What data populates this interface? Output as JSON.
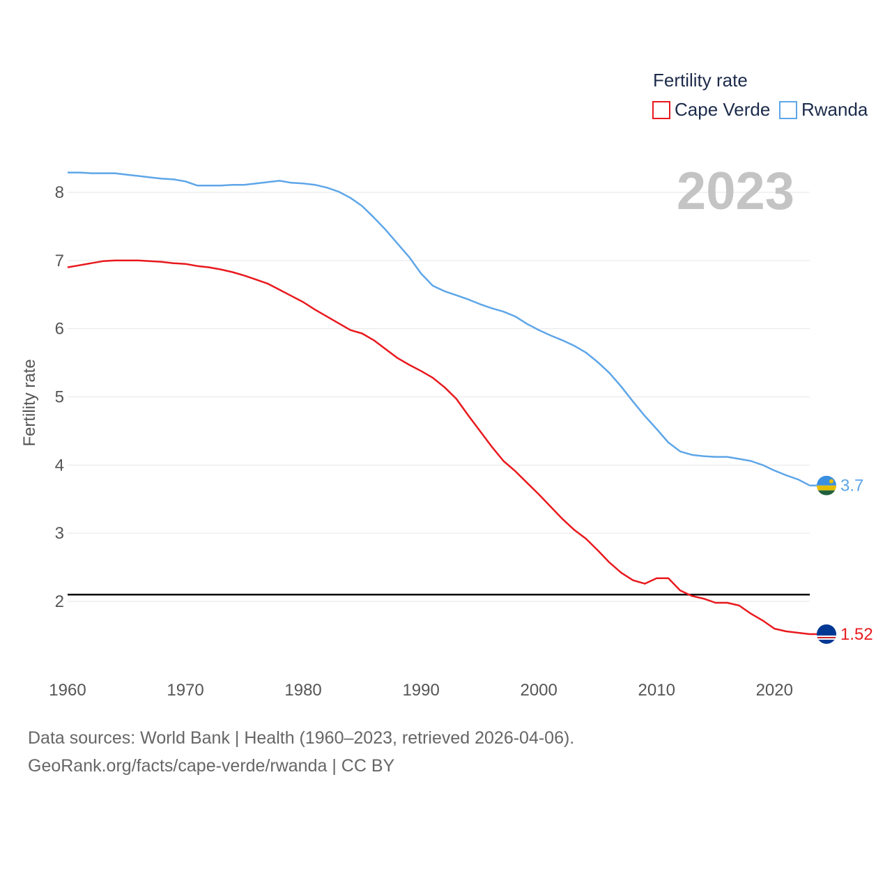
{
  "chart_data": {
    "type": "line",
    "title": "Fertility rate",
    "ylabel": "Fertility rate",
    "xlabel": "",
    "xlim": [
      1960,
      2023
    ],
    "ylim": [
      1.0,
      8.6
    ],
    "x_ticks": [
      1960,
      1970,
      1980,
      1990,
      2000,
      2010,
      2020
    ],
    "y_ticks": [
      2,
      3,
      4,
      5,
      6,
      7,
      8
    ],
    "current_year": "2023",
    "legend_position": "top-right",
    "reference_line": {
      "value": 2.1,
      "color": "#000000"
    },
    "series": [
      {
        "name": "Cape Verde",
        "color": "#e8191e",
        "end_label": "1.52",
        "x": [
          1960,
          1961,
          1962,
          1963,
          1964,
          1965,
          1966,
          1967,
          1968,
          1969,
          1970,
          1971,
          1972,
          1973,
          1974,
          1975,
          1976,
          1977,
          1978,
          1979,
          1980,
          1981,
          1982,
          1983,
          1984,
          1985,
          1986,
          1987,
          1988,
          1989,
          1990,
          1991,
          1992,
          1993,
          1994,
          1995,
          1996,
          1997,
          1998,
          1999,
          2000,
          2001,
          2002,
          2003,
          2004,
          2005,
          2006,
          2007,
          2008,
          2009,
          2010,
          2011,
          2012,
          2013,
          2014,
          2015,
          2016,
          2017,
          2018,
          2019,
          2020,
          2021,
          2022,
          2023
        ],
        "values": [
          6.9,
          6.93,
          6.96,
          6.99,
          7.0,
          7.0,
          7.0,
          6.99,
          6.98,
          6.96,
          6.95,
          6.92,
          6.9,
          6.87,
          6.83,
          6.78,
          6.72,
          6.66,
          6.57,
          6.48,
          6.39,
          6.28,
          6.18,
          6.08,
          5.98,
          5.93,
          5.83,
          5.7,
          5.57,
          5.47,
          5.38,
          5.28,
          5.14,
          4.97,
          4.73,
          4.5,
          4.27,
          4.06,
          3.91,
          3.74,
          3.57,
          3.39,
          3.21,
          3.05,
          2.92,
          2.75,
          2.57,
          2.42,
          2.31,
          2.26,
          2.34,
          2.34,
          2.16,
          2.08,
          2.04,
          1.98,
          1.98,
          1.94,
          1.82,
          1.72,
          1.6,
          1.56,
          1.54,
          1.52
        ]
      },
      {
        "name": "Rwanda",
        "color": "#5ea6e8",
        "end_label": "3.7",
        "x": [
          1960,
          1961,
          1962,
          1963,
          1964,
          1965,
          1966,
          1967,
          1968,
          1969,
          1970,
          1971,
          1972,
          1973,
          1974,
          1975,
          1976,
          1977,
          1978,
          1979,
          1980,
          1981,
          1982,
          1983,
          1984,
          1985,
          1986,
          1987,
          1988,
          1989,
          1990,
          1991,
          1992,
          1993,
          1994,
          1995,
          1996,
          1997,
          1998,
          1999,
          2000,
          2001,
          2002,
          2003,
          2004,
          2005,
          2006,
          2007,
          2008,
          2009,
          2010,
          2011,
          2012,
          2013,
          2014,
          2015,
          2016,
          2017,
          2018,
          2019,
          2020,
          2021,
          2022,
          2023
        ],
        "values": [
          8.29,
          8.29,
          8.28,
          8.28,
          8.28,
          8.26,
          8.24,
          8.22,
          8.2,
          8.19,
          8.16,
          8.1,
          8.1,
          8.1,
          8.11,
          8.11,
          8.13,
          8.15,
          8.17,
          8.14,
          8.13,
          8.11,
          8.07,
          8.01,
          7.92,
          7.8,
          7.63,
          7.45,
          7.25,
          7.05,
          6.81,
          6.63,
          6.55,
          6.49,
          6.43,
          6.36,
          6.3,
          6.25,
          6.18,
          6.07,
          5.98,
          5.9,
          5.83,
          5.75,
          5.65,
          5.51,
          5.35,
          5.15,
          4.93,
          4.72,
          4.53,
          4.33,
          4.2,
          4.15,
          4.13,
          4.12,
          4.12,
          4.09,
          4.06,
          4.0,
          3.92,
          3.85,
          3.79,
          3.7
        ]
      }
    ]
  },
  "footer": {
    "sources": "Data sources: World Bank | Health (1960–2023, retrieved 2026-04-06).",
    "credit": "GeoRank.org/facts/cape-verde/rwanda | CC BY"
  }
}
